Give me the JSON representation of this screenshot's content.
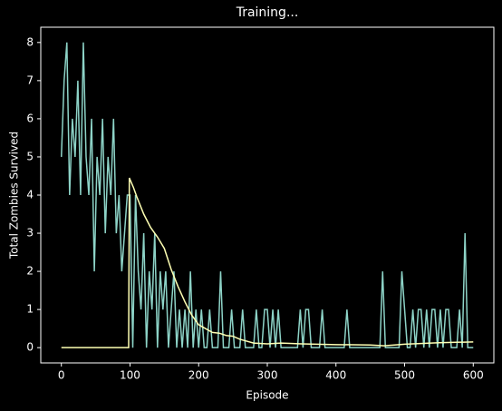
{
  "chart_data": {
    "type": "line",
    "title": "Training...",
    "xlabel": "Episode",
    "ylabel": "Total Zombies Survived",
    "xlim": [
      -30,
      630
    ],
    "xticks": [
      0,
      100,
      200,
      300,
      400,
      500,
      600
    ],
    "ylim": [
      -0.4,
      8.4
    ],
    "yticks": [
      0,
      1,
      2,
      3,
      4,
      5,
      6,
      7,
      8
    ],
    "series": [
      {
        "color": "#8dd3c7",
        "x": [
          0,
          4,
          8,
          12,
          16,
          20,
          24,
          28,
          32,
          36,
          40,
          44,
          48,
          52,
          56,
          60,
          64,
          68,
          72,
          76,
          80,
          84,
          88,
          92,
          96,
          100,
          104,
          108,
          112,
          116,
          120,
          124,
          128,
          132,
          136,
          140,
          144,
          148,
          152,
          156,
          160,
          164,
          168,
          172,
          176,
          180,
          184,
          188,
          192,
          196,
          200,
          204,
          208,
          212,
          216,
          220,
          224,
          228,
          232,
          236,
          240,
          244,
          248,
          252,
          256,
          260,
          264,
          268,
          272,
          276,
          280,
          284,
          288,
          292,
          296,
          300,
          304,
          308,
          312,
          316,
          320,
          324,
          328,
          332,
          336,
          340,
          344,
          348,
          352,
          356,
          360,
          364,
          368,
          372,
          376,
          380,
          384,
          388,
          392,
          396,
          400,
          404,
          408,
          412,
          416,
          420,
          424,
          428,
          432,
          436,
          440,
          444,
          448,
          452,
          456,
          460,
          464,
          468,
          472,
          476,
          480,
          484,
          488,
          492,
          496,
          500,
          504,
          508,
          512,
          516,
          520,
          524,
          528,
          532,
          536,
          540,
          544,
          548,
          552,
          556,
          560,
          564,
          568,
          572,
          576,
          580,
          584,
          588,
          592,
          596,
          600
        ],
        "values": [
          5,
          7,
          8,
          4,
          6,
          5,
          7,
          4,
          8,
          5,
          4,
          6,
          2,
          5,
          4,
          6,
          3,
          5,
          4,
          6,
          3,
          4,
          2,
          3,
          4,
          4,
          0,
          4,
          2,
          1,
          3,
          0,
          2,
          1,
          3,
          0,
          2,
          1,
          2,
          0,
          1,
          2,
          0,
          1,
          0,
          1,
          0,
          2,
          0,
          1,
          0,
          1,
          0,
          0,
          1,
          0,
          0,
          0,
          2,
          0,
          0,
          0,
          1,
          0,
          0,
          0,
          1,
          0,
          0,
          0,
          0,
          1,
          0,
          0,
          1,
          1,
          0,
          1,
          0,
          1,
          0,
          0,
          0,
          0,
          0,
          0,
          0,
          1,
          0,
          1,
          1,
          0,
          0,
          0,
          0,
          1,
          0,
          0,
          0,
          0,
          0,
          0,
          0,
          0,
          1,
          0,
          0,
          0,
          0,
          0,
          0,
          0,
          0,
          0,
          0,
          0,
          0,
          2,
          0,
          0,
          0,
          0,
          0,
          0,
          2,
          1,
          0,
          0,
          1,
          0,
          1,
          1,
          0,
          1,
          0,
          1,
          1,
          0,
          1,
          0,
          1,
          1,
          0,
          0,
          0,
          1,
          0,
          3,
          0,
          0,
          0
        ]
      },
      {
        "color": "#feffb3",
        "x": [
          0,
          98,
          99,
          105,
          110,
          120,
          130,
          140,
          150,
          160,
          170,
          180,
          190,
          200,
          210,
          220,
          230,
          240,
          250,
          260,
          280,
          300,
          320,
          350,
          400,
          450,
          470,
          500,
          550,
          600
        ],
        "values": [
          0,
          0,
          4.45,
          4.2,
          3.95,
          3.5,
          3.15,
          2.9,
          2.6,
          2.05,
          1.6,
          1.2,
          0.85,
          0.6,
          0.5,
          0.4,
          0.38,
          0.32,
          0.3,
          0.22,
          0.12,
          0.1,
          0.12,
          0.1,
          0.08,
          0.07,
          0.05,
          0.09,
          0.13,
          0.15
        ]
      }
    ]
  }
}
